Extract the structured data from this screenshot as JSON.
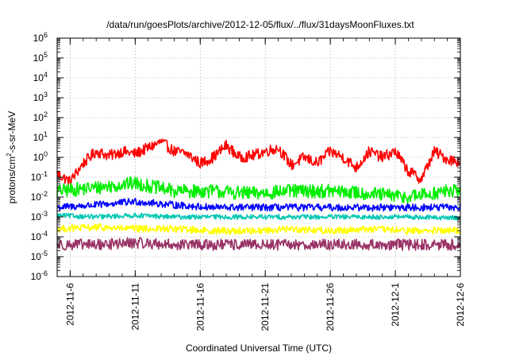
{
  "chart_data": {
    "type": "line",
    "title": "/data/run/goesPlots/archive/2012-12-05/flux/../flux/31daysMoonFluxes.txt",
    "xlabel": "Coordinated Universal Time (UTC)",
    "ylabel": "protons/cm2-s-sr-MeV",
    "ylabel_parts": {
      "pre": "protons/cm",
      "sup": "2",
      "post": "-s-sr-MeV"
    },
    "yscale": "log",
    "ylim_exp": [
      -6,
      6
    ],
    "y_tick_exponents": [
      -6,
      -5,
      -4,
      -3,
      -2,
      -1,
      0,
      1,
      2,
      3,
      4,
      5,
      6
    ],
    "y_tick_base": "10",
    "xlim": [
      "2012-11-05",
      "2012-12-06"
    ],
    "x_ticks": [
      "2012-11-6",
      "2012-11-11",
      "2012-11-16",
      "2012-11-21",
      "2012-11-26",
      "2012-12-1",
      "2012-12-6"
    ],
    "x_tick_dates": [
      "2012-11-06",
      "2012-11-11",
      "2012-11-16",
      "2012-11-21",
      "2012-11-26",
      "2012-12-01",
      "2012-12-06"
    ],
    "grid": true,
    "legend": "none",
    "series": [
      {
        "color": "#ff0000",
        "x": [
          "2012-11-05",
          "2012-11-06",
          "2012-11-07",
          "2012-11-08",
          "2012-11-09",
          "2012-11-10",
          "2012-11-11",
          "2012-11-12",
          "2012-11-13",
          "2012-11-14",
          "2012-11-15",
          "2012-11-16",
          "2012-11-17",
          "2012-11-18",
          "2012-11-19",
          "2012-11-20",
          "2012-11-21",
          "2012-11-22",
          "2012-11-23",
          "2012-11-24",
          "2012-11-25",
          "2012-11-26",
          "2012-11-27",
          "2012-11-28",
          "2012-11-29",
          "2012-11-30",
          "2012-12-01",
          "2012-12-02",
          "2012-12-03",
          "2012-12-04",
          "2012-12-05",
          "2012-12-06"
        ],
        "values": [
          0.15,
          0.06,
          0.5,
          2,
          1.2,
          2,
          1.5,
          3,
          6,
          2,
          1.5,
          0.5,
          1,
          4,
          1,
          1.2,
          2,
          3,
          0.4,
          1,
          0.5,
          2,
          1,
          0.3,
          2,
          1,
          2,
          0.2,
          0.08,
          2,
          0.8,
          0.6
        ]
      },
      {
        "color": "#00ee00",
        "x": [
          "2012-11-05",
          "2012-11-08",
          "2012-11-11",
          "2012-11-14",
          "2012-11-17",
          "2012-11-20",
          "2012-11-23",
          "2012-11-26",
          "2012-11-29",
          "2012-12-02",
          "2012-12-05",
          "2012-12-06"
        ],
        "values": [
          0.02,
          0.03,
          0.05,
          0.02,
          0.02,
          0.015,
          0.02,
          0.02,
          0.015,
          0.01,
          0.02,
          0.02
        ]
      },
      {
        "color": "#0000ff",
        "x": [
          "2012-11-05",
          "2012-11-08",
          "2012-11-11",
          "2012-11-14",
          "2012-11-17",
          "2012-11-20",
          "2012-11-23",
          "2012-11-26",
          "2012-11-29",
          "2012-12-02",
          "2012-12-05",
          "2012-12-06"
        ],
        "values": [
          0.003,
          0.004,
          0.006,
          0.004,
          0.003,
          0.003,
          0.003,
          0.003,
          0.003,
          0.003,
          0.003,
          0.003
        ]
      },
      {
        "color": "#00c8b4",
        "x": [
          "2012-11-05",
          "2012-11-08",
          "2012-11-11",
          "2012-11-14",
          "2012-11-17",
          "2012-11-20",
          "2012-11-23",
          "2012-11-26",
          "2012-11-29",
          "2012-12-02",
          "2012-12-05",
          "2012-12-06"
        ],
        "values": [
          0.0012,
          0.001,
          0.0012,
          0.001,
          0.001,
          0.001,
          0.001,
          0.001,
          0.001,
          0.001,
          0.0009,
          0.0009
        ]
      },
      {
        "color": "#ffff00",
        "x": [
          "2012-11-05",
          "2012-11-08",
          "2012-11-11",
          "2012-11-14",
          "2012-11-17",
          "2012-11-20",
          "2012-11-23",
          "2012-11-26",
          "2012-11-29",
          "2012-12-02",
          "2012-12-05",
          "2012-12-06"
        ],
        "values": [
          0.00025,
          0.0003,
          0.00025,
          0.00025,
          0.0002,
          0.0002,
          0.00025,
          0.0002,
          0.00025,
          0.0002,
          0.0002,
          0.0002
        ]
      },
      {
        "color": "#993366",
        "x": [
          "2012-11-05",
          "2012-11-08",
          "2012-11-11",
          "2012-11-14",
          "2012-11-17",
          "2012-11-20",
          "2012-11-23",
          "2012-11-26",
          "2012-11-29",
          "2012-12-02",
          "2012-12-05",
          "2012-12-06"
        ],
        "values": [
          4e-05,
          4e-05,
          5e-05,
          4e-05,
          4e-05,
          4e-05,
          4e-05,
          4e-05,
          4e-05,
          4e-05,
          4e-05,
          4e-05
        ]
      }
    ]
  }
}
